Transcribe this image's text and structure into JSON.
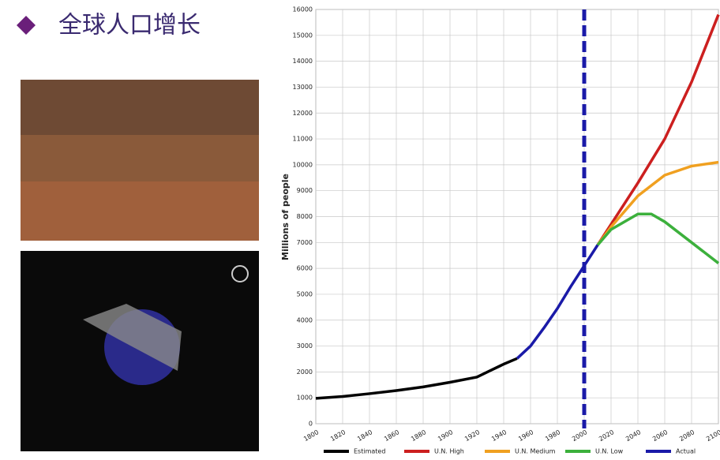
{
  "slide_title": "全球人口增长",
  "chart_data": {
    "type": "line",
    "y_label": "Millions of people",
    "xlim": [
      1800,
      2100
    ],
    "xticks": [
      1800,
      1820,
      1840,
      1860,
      1880,
      1900,
      1920,
      1940,
      1960,
      1980,
      2000,
      2020,
      2040,
      2060,
      2080,
      2100
    ],
    "ylim": [
      0,
      16000
    ],
    "yticks": [
      0,
      1000,
      2000,
      3000,
      4000,
      5000,
      6000,
      7000,
      8000,
      9000,
      10000,
      11000,
      12000,
      13000,
      14000,
      15000,
      16000
    ],
    "grid": true,
    "legend": "bottom",
    "reference_line": {
      "x": 2000,
      "color": "#1a1aa8"
    },
    "series": [
      {
        "name": "Estimated",
        "color": "#000000",
        "x": [
          1800,
          1820,
          1840,
          1860,
          1880,
          1900,
          1920,
          1930,
          1940,
          1950
        ],
        "values": [
          980,
          1050,
          1160,
          1280,
          1420,
          1600,
          1800,
          2050,
          2300,
          2520
        ]
      },
      {
        "name": "U.N. High",
        "color": "#cc1f1f",
        "x": [
          2010,
          2020,
          2040,
          2060,
          2080,
          2100
        ],
        "values": [
          6900,
          7700,
          9300,
          11000,
          13200,
          15800
        ]
      },
      {
        "name": "U.N. Medium",
        "color": "#f0a020",
        "x": [
          2010,
          2020,
          2040,
          2060,
          2080,
          2100
        ],
        "values": [
          6900,
          7600,
          8800,
          9600,
          9950,
          10100
        ]
      },
      {
        "name": "U.N. Low",
        "color": "#3cb03c",
        "x": [
          2010,
          2020,
          2040,
          2050,
          2060,
          2080,
          2100
        ],
        "values": [
          6900,
          7500,
          8100,
          8100,
          7800,
          7000,
          6200
        ]
      },
      {
        "name": "Actual",
        "color": "#1a1aa8",
        "x": [
          1950,
          1960,
          1970,
          1980,
          1990,
          2000,
          2010
        ],
        "values": [
          2520,
          3000,
          3700,
          4450,
          5300,
          6100,
          6900
        ]
      }
    ]
  }
}
